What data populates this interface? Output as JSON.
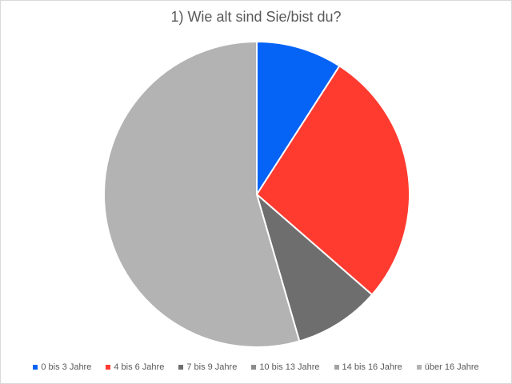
{
  "chart_data": {
    "type": "pie",
    "title": "1) Wie alt sind Sie/bist du?",
    "categories": [
      "0 bis 3 Jahre",
      "4 bis 6 Jahre",
      "7 bis 9 Jahre",
      "10 bis 13 Jahre",
      "14 bis 16 Jahre",
      "über 16 Jahre"
    ],
    "values": [
      9.1,
      27.3,
      9.1,
      0,
      0,
      54.5
    ],
    "colors": [
      "#0563f5",
      "#ff3b30",
      "#6e6e6e",
      "#8c8c8c",
      "#a3a3a3",
      "#b3b3b3"
    ],
    "start_angle_deg": 0,
    "direction": "clockwise",
    "legend_position": "bottom"
  }
}
